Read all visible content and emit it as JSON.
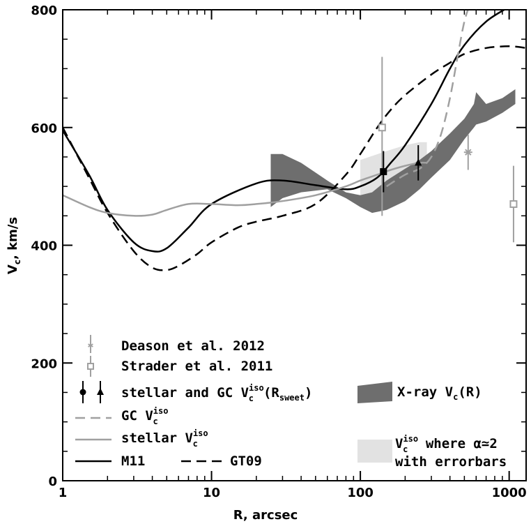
{
  "chart_data": {
    "type": "line",
    "xscale": "log",
    "xlim": [
      1,
      1300
    ],
    "ylim": [
      0,
      800
    ],
    "xlabel": "R, arcsec",
    "ylabel_main": "V",
    "ylabel_sub": "c",
    "ylabel_rest": ", km/s",
    "x_ticks": [
      {
        "value": 1,
        "label": "1"
      },
      {
        "value": 10,
        "label": "10"
      },
      {
        "value": 100,
        "label": "100"
      },
      {
        "value": 1000,
        "label": "1000"
      }
    ],
    "y_ticks": [
      {
        "value": 0,
        "label": "0"
      },
      {
        "value": 200,
        "label": "200"
      },
      {
        "value": 400,
        "label": "400"
      },
      {
        "value": 600,
        "label": "600"
      },
      {
        "value": 800,
        "label": "800"
      }
    ],
    "series": [
      {
        "key": "m11",
        "name": "M11",
        "color": "#000000",
        "dash": "",
        "x": [
          1,
          1.5,
          2,
          3,
          4,
          5,
          7,
          10,
          20,
          30,
          50,
          80,
          100,
          130,
          160,
          200,
          300,
          400,
          500,
          700,
          1000
        ],
        "y": [
          595,
          520,
          460,
          405,
          390,
          395,
          430,
          470,
          505,
          510,
          502,
          495,
          500,
          515,
          540,
          570,
          640,
          700,
          740,
          780,
          805
        ]
      },
      {
        "key": "gt09",
        "name": "GT09",
        "color": "#000000",
        "dash": "14,8",
        "x": [
          1,
          1.5,
          2,
          3,
          4,
          5,
          6,
          8,
          10,
          15,
          20,
          30,
          50,
          80,
          100,
          130,
          160,
          200,
          300,
          400,
          500,
          700,
          1000,
          1300
        ],
        "y": [
          600,
          515,
          455,
          390,
          362,
          358,
          365,
          385,
          405,
          430,
          440,
          450,
          470,
          520,
          555,
          600,
          630,
          655,
          690,
          710,
          725,
          735,
          738,
          735
        ]
      },
      {
        "key": "gc",
        "name": "GC",
        "color": "#a0a0a0",
        "dash": "14,8",
        "x": [
          150,
          200,
          250,
          300,
          350,
          400,
          450,
          500,
          550,
          600
        ],
        "y": [
          500,
          520,
          530,
          550,
          590,
          650,
          720,
          780,
          810,
          820
        ]
      },
      {
        "key": "stellar",
        "name": "stellar",
        "color": "#a0a0a0",
        "dash": "",
        "x": [
          1,
          1.5,
          2,
          3,
          4,
          5,
          7,
          10,
          15,
          20,
          30,
          50,
          80,
          100,
          130,
          160,
          200,
          250,
          280
        ],
        "y": [
          485,
          465,
          455,
          450,
          452,
          460,
          470,
          470,
          468,
          470,
          475,
          485,
          500,
          510,
          520,
          528,
          535,
          540,
          540
        ]
      }
    ],
    "xray_band": {
      "color": "#6e6e6e",
      "x": [
        25,
        30,
        40,
        60,
        80,
        100,
        120,
        150,
        200,
        250,
        300,
        400,
        500,
        580,
        600,
        700,
        900,
        1100
      ],
      "upper": [
        555,
        555,
        540,
        510,
        490,
        485,
        490,
        510,
        530,
        545,
        560,
        590,
        615,
        640,
        660,
        640,
        650,
        665
      ],
      "lower": [
        465,
        480,
        490,
        495,
        480,
        465,
        455,
        460,
        475,
        495,
        515,
        545,
        580,
        600,
        605,
        610,
        625,
        640
      ]
    },
    "iso_band": {
      "color": "#e2e2e2",
      "x": [
        100,
        150,
        200,
        250,
        280
      ],
      "upper": [
        545,
        560,
        570,
        575,
        575
      ],
      "lower": [
        475,
        500,
        510,
        520,
        520
      ]
    },
    "points": [
      {
        "key": "deason",
        "x": 530,
        "y": 558,
        "err": 30,
        "color": "#a0a0a0",
        "marker": "star"
      },
      {
        "key": "strader",
        "x": 140,
        "y": 600,
        "errup": 120,
        "errdown": 150,
        "color": "#a0a0a0",
        "marker": "square-open"
      },
      {
        "key": "strader",
        "x": 1070,
        "y": 470,
        "err": 65,
        "color": "#a0a0a0",
        "marker": "square-open"
      },
      {
        "key": "stellar-sweet",
        "x": 143,
        "y": 525,
        "err": 35,
        "color": "#000000",
        "marker": "circle"
      },
      {
        "key": "gc-sweet",
        "x": 245,
        "y": 540,
        "err": 30,
        "color": "#000000",
        "marker": "triangle"
      }
    ],
    "legend": {
      "deason": "Deason et al. 2012",
      "strader": "Strader et al. 2011",
      "sweet_a": "stellar and GC V",
      "sweet_sup": "iso",
      "sweet_sub": "c",
      "sweet_b": "(R",
      "sweet_sub2": "sweet",
      "sweet_c": ")",
      "gc_a": "GC V",
      "gc_sup": "iso",
      "gc_sub": "c",
      "stellar_a": "stellar V",
      "stellar_sup": "iso",
      "stellar_sub": "c",
      "m11": "M11",
      "gt09": "GT09",
      "xray_a": "X-ray V",
      "xray_sub": "c",
      "xray_b": "(R)",
      "iso_a": "V",
      "iso_sup": "iso",
      "iso_sub": "c",
      "iso_b": " where α≃2",
      "iso_c": "with errorbars"
    }
  }
}
